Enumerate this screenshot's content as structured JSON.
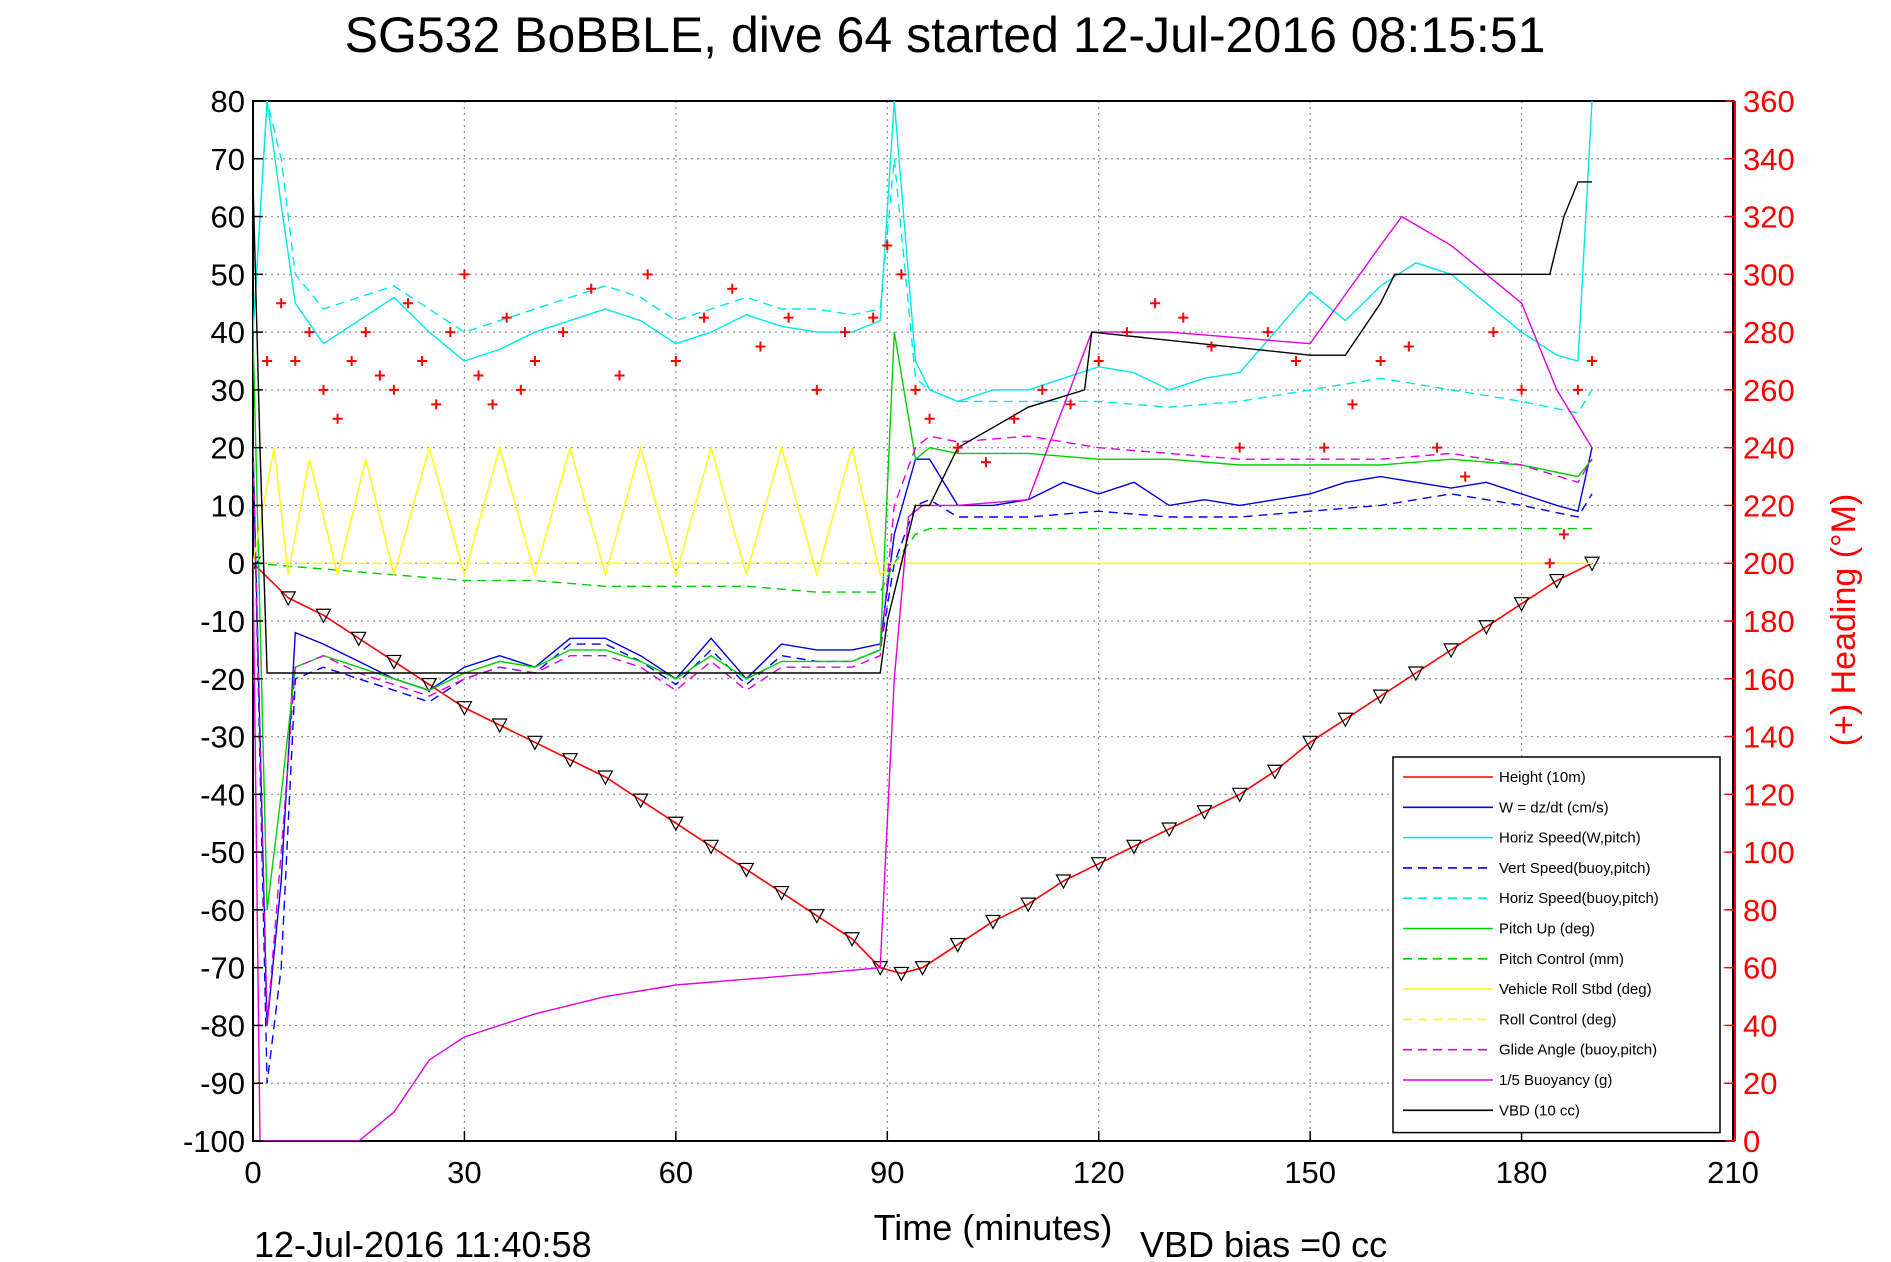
{
  "chart_data": {
    "type": "line",
    "title": "SG532 BoBBLE, dive 64 started 12-Jul-2016 08:15:51",
    "xlabel": "Time (minutes)",
    "ylabel_right": "(+) Heading (°M)",
    "xlim": [
      0,
      210
    ],
    "ylim": [
      -100,
      80
    ],
    "ylim_right": [
      0,
      360
    ],
    "x_ticks": [
      "0",
      "30",
      "60",
      "90",
      "120",
      "150",
      "180",
      "210"
    ],
    "y_ticks": [
      "80",
      "70",
      "60",
      "50",
      "40",
      "30",
      "20",
      "10",
      "0",
      "-10",
      "-20",
      "-30",
      "-40",
      "-50",
      "-60",
      "-70",
      "-80",
      "-90",
      "-100"
    ],
    "y_ticks_right": [
      "360",
      "340",
      "320",
      "300",
      "280",
      "260",
      "240",
      "220",
      "200",
      "180",
      "160",
      "140",
      "120",
      "100",
      "80",
      "60",
      "40",
      "20",
      "0"
    ],
    "grid": true,
    "legend_position": "bottom-right",
    "footer_left": "12-Jul-2016 11:40:58",
    "footer_right": "VBD bias =0 cc",
    "series": [
      {
        "name": "Height (10m)",
        "color": "#ff0000",
        "dash": "solid",
        "x": [
          0,
          5,
          10,
          15,
          20,
          25,
          30,
          35,
          40,
          45,
          50,
          55,
          60,
          65,
          70,
          75,
          80,
          85,
          89,
          92,
          95,
          100,
          105,
          110,
          115,
          120,
          125,
          130,
          135,
          140,
          145,
          150,
          155,
          160,
          165,
          170,
          175,
          180,
          185,
          190
        ],
        "y": [
          0,
          -6,
          -9,
          -13,
          -17,
          -21,
          -25,
          -28,
          -31,
          -34,
          -37,
          -41,
          -45,
          -49,
          -53,
          -57,
          -61,
          -65,
          -70,
          -71,
          -70,
          -66,
          -62,
          -59,
          -55,
          -52,
          -49,
          -46,
          -43,
          -40,
          -36,
          -31,
          -27,
          -23,
          -19,
          -15,
          -11,
          -7,
          -3,
          0
        ]
      },
      {
        "name": "W = dz/dt (cm/s)",
        "color": "#0000e0",
        "dash": "solid",
        "x": [
          0,
          2,
          4,
          6,
          10,
          15,
          20,
          25,
          30,
          35,
          40,
          45,
          50,
          55,
          60,
          65,
          70,
          75,
          80,
          85,
          89,
          91,
          94,
          96,
          100,
          105,
          110,
          115,
          120,
          125,
          130,
          135,
          140,
          145,
          150,
          155,
          160,
          165,
          170,
          175,
          180,
          185,
          188,
          190
        ],
        "y": [
          20,
          -80,
          -55,
          -12,
          -14,
          -17,
          -20,
          -22,
          -18,
          -16,
          -18,
          -13,
          -13,
          -16,
          -20,
          -13,
          -20,
          -14,
          -15,
          -15,
          -14,
          5,
          18,
          18,
          10,
          10,
          11,
          14,
          12,
          14,
          10,
          11,
          10,
          11,
          12,
          14,
          15,
          14,
          13,
          14,
          12,
          10,
          9,
          20
        ]
      },
      {
        "name": "Horiz Speed(W,pitch)",
        "color": "#00e8e8",
        "dash": "solid",
        "x": [
          0,
          2,
          4,
          6,
          10,
          15,
          20,
          25,
          30,
          35,
          40,
          45,
          50,
          55,
          60,
          65,
          70,
          75,
          80,
          85,
          89,
          91,
          94,
          96,
          100,
          105,
          110,
          115,
          120,
          125,
          130,
          135,
          140,
          145,
          150,
          155,
          160,
          165,
          170,
          175,
          180,
          185,
          188,
          190
        ],
        "y": [
          40,
          80,
          62,
          45,
          38,
          42,
          46,
          40,
          35,
          37,
          40,
          42,
          44,
          42,
          38,
          40,
          43,
          41,
          40,
          40,
          42,
          80,
          35,
          30,
          28,
          30,
          30,
          32,
          34,
          33,
          30,
          32,
          33,
          40,
          47,
          42,
          48,
          52,
          50,
          45,
          40,
          36,
          35,
          80
        ]
      },
      {
        "name": "Vert Speed(buoy,pitch)",
        "color": "#0000ff",
        "dash": "dashed",
        "x": [
          0,
          2,
          4,
          6,
          10,
          15,
          20,
          25,
          30,
          35,
          40,
          45,
          50,
          55,
          60,
          65,
          70,
          75,
          80,
          85,
          89,
          91,
          94,
          96,
          100,
          110,
          120,
          130,
          140,
          150,
          160,
          170,
          180,
          188,
          190
        ],
        "y": [
          20,
          -90,
          -70,
          -20,
          -18,
          -20,
          -22,
          -24,
          -20,
          -18,
          -19,
          -14,
          -14,
          -17,
          -21,
          -15,
          -21,
          -16,
          -17,
          -17,
          -15,
          0,
          10,
          11,
          8,
          8,
          9,
          8,
          8,
          9,
          10,
          12,
          10,
          8,
          12
        ]
      },
      {
        "name": "Horiz Speed(buoy,pitch)",
        "color": "#00e8e8",
        "dash": "dashed",
        "x": [
          0,
          2,
          4,
          6,
          10,
          15,
          20,
          25,
          30,
          35,
          40,
          45,
          50,
          55,
          60,
          65,
          70,
          75,
          80,
          85,
          89,
          91,
          94,
          96,
          100,
          110,
          120,
          130,
          140,
          150,
          160,
          170,
          180,
          188,
          190
        ],
        "y": [
          40,
          80,
          70,
          50,
          44,
          46,
          48,
          44,
          40,
          42,
          44,
          46,
          48,
          46,
          42,
          44,
          46,
          44,
          44,
          43,
          44,
          70,
          32,
          30,
          28,
          28,
          28,
          27,
          28,
          30,
          32,
          30,
          28,
          26,
          30
        ]
      },
      {
        "name": "Pitch Up (deg)",
        "color": "#00d000",
        "dash": "solid",
        "x": [
          0,
          2,
          4,
          6,
          10,
          15,
          20,
          25,
          30,
          35,
          40,
          45,
          50,
          55,
          60,
          65,
          70,
          75,
          80,
          85,
          89,
          91,
          94,
          96,
          100,
          110,
          120,
          130,
          140,
          150,
          160,
          170,
          180,
          188,
          190
        ],
        "y": [
          40,
          -60,
          -40,
          -18,
          -16,
          -18,
          -20,
          -22,
          -19,
          -17,
          -18,
          -15,
          -15,
          -17,
          -20,
          -16,
          -20,
          -17,
          -17,
          -17,
          -15,
          40,
          18,
          20,
          19,
          19,
          18,
          18,
          17,
          17,
          17,
          18,
          17,
          15,
          18
        ]
      },
      {
        "name": "Pitch Control (mm)",
        "color": "#00d000",
        "dash": "dashed",
        "x": [
          0,
          10,
          20,
          30,
          40,
          50,
          60,
          70,
          80,
          89,
          91,
          94,
          96,
          110,
          130,
          150,
          170,
          190
        ],
        "y": [
          0,
          -1,
          -2,
          -3,
          -3,
          -4,
          -4,
          -4,
          -5,
          -5,
          0,
          5,
          6,
          6,
          6,
          6,
          6,
          6
        ]
      },
      {
        "name": "Vehicle Roll Stbd (deg)",
        "color": "#ffff00",
        "dash": "solid",
        "x": [
          0,
          3,
          5,
          8,
          12,
          16,
          20,
          25,
          30,
          35,
          40,
          45,
          50,
          55,
          60,
          65,
          70,
          75,
          80,
          85,
          89,
          91,
          95,
          100,
          110,
          120,
          130,
          140,
          150,
          160,
          170,
          180,
          190
        ],
        "y": [
          0,
          20,
          -2,
          18,
          -2,
          18,
          -2,
          20,
          -2,
          20,
          -2,
          20,
          -2,
          20,
          -2,
          20,
          -2,
          20,
          -2,
          20,
          -2,
          0,
          0,
          0,
          0,
          0,
          0,
          0,
          0,
          0,
          0,
          0,
          0
        ]
      },
      {
        "name": "Roll Control (deg)",
        "color": "#ffff00",
        "dash": "dashed",
        "x": [
          0,
          10,
          20,
          30,
          40,
          50,
          60,
          70,
          80,
          89,
          91,
          100,
          110,
          120,
          130,
          140,
          150,
          160,
          170,
          180,
          190
        ],
        "y": [
          0,
          0,
          0,
          0,
          0,
          0,
          0,
          0,
          0,
          0,
          0,
          0,
          0,
          0,
          0,
          0,
          0,
          0,
          0,
          0,
          0
        ]
      },
      {
        "name": "Glide Angle (buoy,pitch)",
        "color": "#e000e0",
        "dash": "dashed",
        "x": [
          0,
          2,
          4,
          6,
          10,
          15,
          20,
          25,
          30,
          35,
          40,
          45,
          50,
          55,
          60,
          65,
          70,
          75,
          80,
          85,
          89,
          91,
          94,
          96,
          100,
          110,
          120,
          130,
          140,
          150,
          160,
          170,
          180,
          188,
          190
        ],
        "y": [
          20,
          -80,
          -50,
          -18,
          -16,
          -19,
          -21,
          -23,
          -20,
          -18,
          -19,
          -16,
          -16,
          -18,
          -22,
          -17,
          -22,
          -18,
          -18,
          -18,
          -16,
          10,
          20,
          22,
          21,
          22,
          20,
          19,
          18,
          18,
          18,
          19,
          17,
          14,
          18
        ]
      },
      {
        "name": "1/5 Buoyancy (g)",
        "color": "#e000e0",
        "dash": "solid",
        "x": [
          0,
          1,
          2,
          15,
          20,
          25,
          30,
          40,
          50,
          60,
          70,
          80,
          89,
          91,
          93,
          95,
          100,
          110,
          119,
          130,
          150,
          160,
          163,
          170,
          180,
          185,
          190
        ],
        "y": [
          0,
          -100,
          -100,
          -100,
          -95,
          -86,
          -82,
          -78,
          -75,
          -73,
          -72,
          -71,
          -70,
          -20,
          8,
          10,
          10,
          11,
          40,
          40,
          38,
          55,
          60,
          55,
          45,
          30,
          20
        ]
      },
      {
        "name": "VBD (10 cc)",
        "color": "#000000",
        "dash": "solid",
        "x": [
          0,
          1,
          2,
          40,
          89,
          90,
          92,
          94,
          96,
          100,
          110,
          118,
          119,
          150,
          155,
          160,
          162,
          170,
          180,
          184,
          186,
          188,
          190
        ],
        "y": [
          66,
          20,
          -19,
          -19,
          -19,
          -10,
          0,
          10,
          10,
          20,
          27,
          30,
          40,
          36,
          36,
          45,
          50,
          50,
          50,
          50,
          60,
          66,
          66
        ]
      },
      {
        "name": "Heading",
        "color": "#ff0000",
        "dash": "marker",
        "axis": "right",
        "x": [
          0,
          2,
          4,
          6,
          8,
          10,
          12,
          14,
          16,
          18,
          20,
          22,
          24,
          26,
          28,
          30,
          32,
          34,
          36,
          38,
          40,
          44,
          48,
          52,
          56,
          60,
          64,
          68,
          72,
          76,
          80,
          84,
          88,
          90,
          92,
          94,
          96,
          100,
          104,
          108,
          112,
          116,
          120,
          124,
          128,
          132,
          136,
          140,
          144,
          148,
          152,
          156,
          160,
          164,
          168,
          172,
          176,
          180,
          184,
          186,
          188,
          190
        ],
        "y": [
          160,
          270,
          290,
          270,
          280,
          260,
          250,
          270,
          280,
          265,
          260,
          290,
          270,
          255,
          280,
          300,
          265,
          255,
          285,
          260,
          270,
          280,
          295,
          265,
          300,
          270,
          285,
          295,
          275,
          285,
          260,
          280,
          285,
          310,
          300,
          260,
          250,
          240,
          235,
          250,
          260,
          255,
          270,
          280,
          290,
          285,
          275,
          240,
          280,
          270,
          240,
          255,
          270,
          275,
          240,
          230,
          280,
          260,
          200,
          210,
          260,
          270
        ]
      }
    ]
  }
}
